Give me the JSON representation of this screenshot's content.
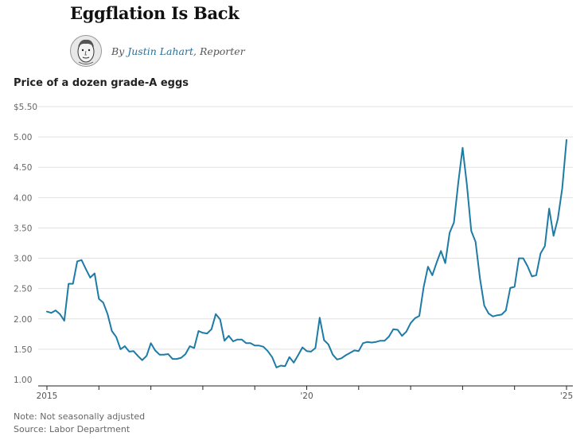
{
  "header": {
    "headline": "Eggflation Is Back",
    "byline_prefix": "By",
    "author": "Justin Lahart",
    "role_suffix": ", Reporter"
  },
  "chart_data": {
    "type": "line",
    "title": "Price of a dozen grade-A eggs",
    "xlabel": "",
    "ylabel": "",
    "ylim": [
      1.0,
      5.5
    ],
    "y_ticks": [
      1.0,
      1.5,
      2.0,
      2.5,
      3.0,
      3.5,
      4.0,
      4.5,
      5.0,
      5.5
    ],
    "y_tick_labels": [
      "1.00",
      "1.50",
      "2.00",
      "2.50",
      "3.00",
      "3.50",
      "4.00",
      "4.50",
      "5.00",
      "$5.50"
    ],
    "x_range": [
      2015.0,
      2025.0
    ],
    "x_ticks": [
      2015,
      2016,
      2017,
      2018,
      2019,
      2020,
      2021,
      2022,
      2023,
      2024,
      2025
    ],
    "x_tick_labels": [
      {
        "x": 2015,
        "label": "2015"
      },
      {
        "x": 2020,
        "label": "'20"
      },
      {
        "x": 2025,
        "label": "'25"
      }
    ],
    "line_color": "#1e7ba6",
    "series": [
      {
        "name": "Price of a dozen grade-A eggs",
        "x_start": 2015.0,
        "x_step": 0.08333,
        "values": [
          2.12,
          2.1,
          2.14,
          2.08,
          1.97,
          2.58,
          2.58,
          2.95,
          2.97,
          2.82,
          2.68,
          2.75,
          2.33,
          2.27,
          2.08,
          1.8,
          1.7,
          1.5,
          1.55,
          1.46,
          1.47,
          1.39,
          1.32,
          1.39,
          1.6,
          1.48,
          1.41,
          1.41,
          1.42,
          1.34,
          1.34,
          1.36,
          1.42,
          1.55,
          1.52,
          1.8,
          1.77,
          1.76,
          1.83,
          2.08,
          1.99,
          1.64,
          1.72,
          1.63,
          1.66,
          1.66,
          1.6,
          1.6,
          1.56,
          1.56,
          1.54,
          1.47,
          1.37,
          1.2,
          1.23,
          1.22,
          1.37,
          1.28,
          1.4,
          1.53,
          1.47,
          1.46,
          1.52,
          2.02,
          1.65,
          1.58,
          1.41,
          1.33,
          1.35,
          1.4,
          1.44,
          1.48,
          1.47,
          1.6,
          1.62,
          1.61,
          1.62,
          1.64,
          1.64,
          1.71,
          1.83,
          1.82,
          1.72,
          1.79,
          1.93,
          2.01,
          2.05,
          2.52,
          2.86,
          2.72,
          2.93,
          3.12,
          2.92,
          3.42,
          3.59,
          4.25,
          4.82,
          4.21,
          3.45,
          3.27,
          2.67,
          2.22,
          2.09,
          2.04,
          2.06,
          2.07,
          2.14,
          2.51,
          2.53,
          3.0,
          3.0,
          2.87,
          2.7,
          2.72,
          3.08,
          3.2,
          3.82,
          3.37,
          3.65,
          4.15,
          4.95
        ]
      }
    ]
  },
  "footer": {
    "note": "Note: Not seasonally adjusted",
    "source": "Source: Labor Department"
  }
}
